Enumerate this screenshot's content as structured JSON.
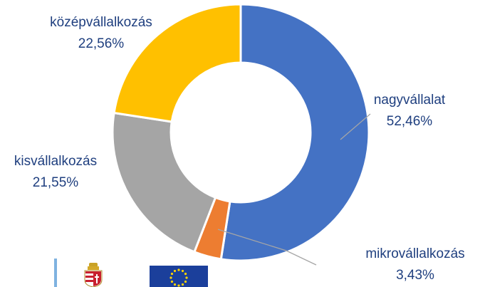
{
  "chart_data": {
    "type": "pie",
    "variant": "donut",
    "slices": [
      {
        "label": "nagyvállalat",
        "value": 52.46,
        "display": "52,46%",
        "color": "#4472c4"
      },
      {
        "label": "mikrovállalkozás",
        "value": 3.43,
        "display": "3,43%",
        "color": "#ed7d31"
      },
      {
        "label": "kisvállalkozás",
        "value": 21.55,
        "display": "21,55%",
        "color": "#a5a5a5"
      },
      {
        "label": "középvállalkozás",
        "value": 22.56,
        "display": "22,56%",
        "color": "#ffc000"
      }
    ],
    "start": "12 o'clock",
    "direction": "clockwise",
    "labels": "outside with leader lines",
    "title": "",
    "legend": "none"
  },
  "footer": {
    "logos": [
      "hungarian-coat-of-arms",
      "eu-flag"
    ]
  }
}
